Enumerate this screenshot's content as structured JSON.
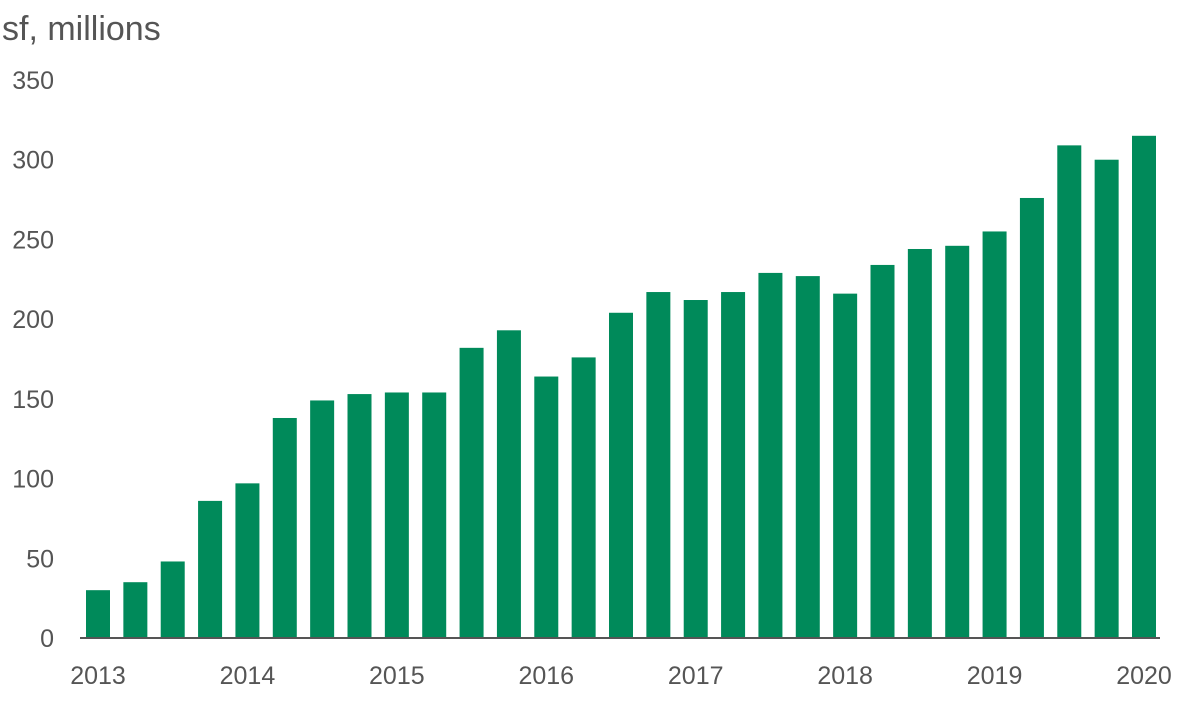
{
  "chart_data": {
    "type": "bar",
    "title": "",
    "unit_label": "sf, millions",
    "xlabel": "",
    "ylabel": "",
    "ylim": [
      0,
      350
    ],
    "yticks": [
      0,
      50,
      100,
      150,
      200,
      250,
      300,
      350
    ],
    "year_ticks": [
      {
        "label": "2013",
        "at_bar": 0
      },
      {
        "label": "2014",
        "at_bar": 4
      },
      {
        "label": "2015",
        "at_bar": 8
      },
      {
        "label": "2016",
        "at_bar": 12
      },
      {
        "label": "2017",
        "at_bar": 16
      },
      {
        "label": "2018",
        "at_bar": 20
      },
      {
        "label": "2019",
        "at_bar": 24
      },
      {
        "label": "2020",
        "at_bar": 28
      }
    ],
    "values": [
      30,
      35,
      48,
      86,
      97,
      138,
      149,
      153,
      154,
      154,
      182,
      193,
      164,
      176,
      204,
      217,
      212,
      217,
      229,
      227,
      216,
      234,
      244,
      246,
      255,
      276,
      309,
      300,
      315
    ],
    "bar_color": "#008A5A",
    "axis_color": "#555555",
    "text_color": "#555555",
    "grid": false,
    "legend": "none"
  }
}
